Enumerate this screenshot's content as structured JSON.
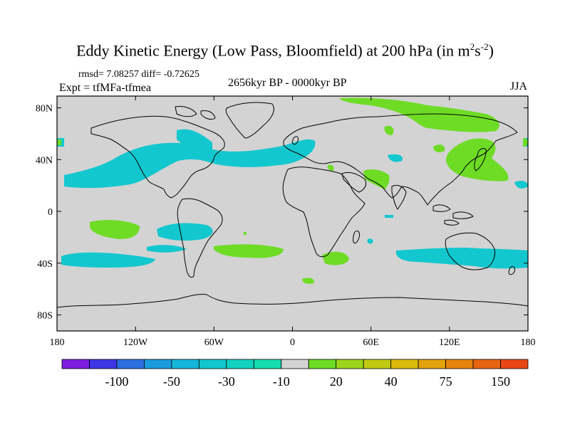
{
  "title": {
    "main": "Eddy Kinetic Energy (Low Pass, Bloomfield) at 200 hPa (in m",
    "sup1": "2",
    "mid": "s",
    "sup2": "-2",
    "end": ")"
  },
  "stats": "rmsd= 7.08257 diff= -0.72625",
  "expt": "Expt = tfMFa-tfmea",
  "period": "2656kyr BP - 0000kyr BP",
  "season": "JJA",
  "map": {
    "background_color": "#d3d3d3",
    "x_tick_labels": [
      "180",
      "120W",
      "60W",
      "0",
      "60E",
      "120E",
      "180"
    ],
    "y_tick_labels": [
      "80N",
      "40N",
      "0",
      "40S",
      "80S"
    ]
  },
  "colorbar": {
    "colors": [
      "#7c1de0",
      "#3d37e6",
      "#2c6fe0",
      "#1b9adf",
      "#14b6d9",
      "#13c7cf",
      "#12d3c0",
      "#16dcb0",
      "#d3d3d3",
      "#6edc25",
      "#9bd41b",
      "#c1c910",
      "#dbbb0b",
      "#e2a20c",
      "#e5850e",
      "#e76511",
      "#e84614"
    ],
    "labels": [
      "-100",
      "-50",
      "-30",
      "-10",
      "20",
      "40",
      "75",
      "150"
    ],
    "label_positions": [
      2,
      4,
      6,
      8,
      10,
      12,
      14,
      16
    ]
  },
  "colors": {
    "negative_patch": "#13c7cf",
    "positive_patch": "#6edc25",
    "coast": "#000000"
  }
}
